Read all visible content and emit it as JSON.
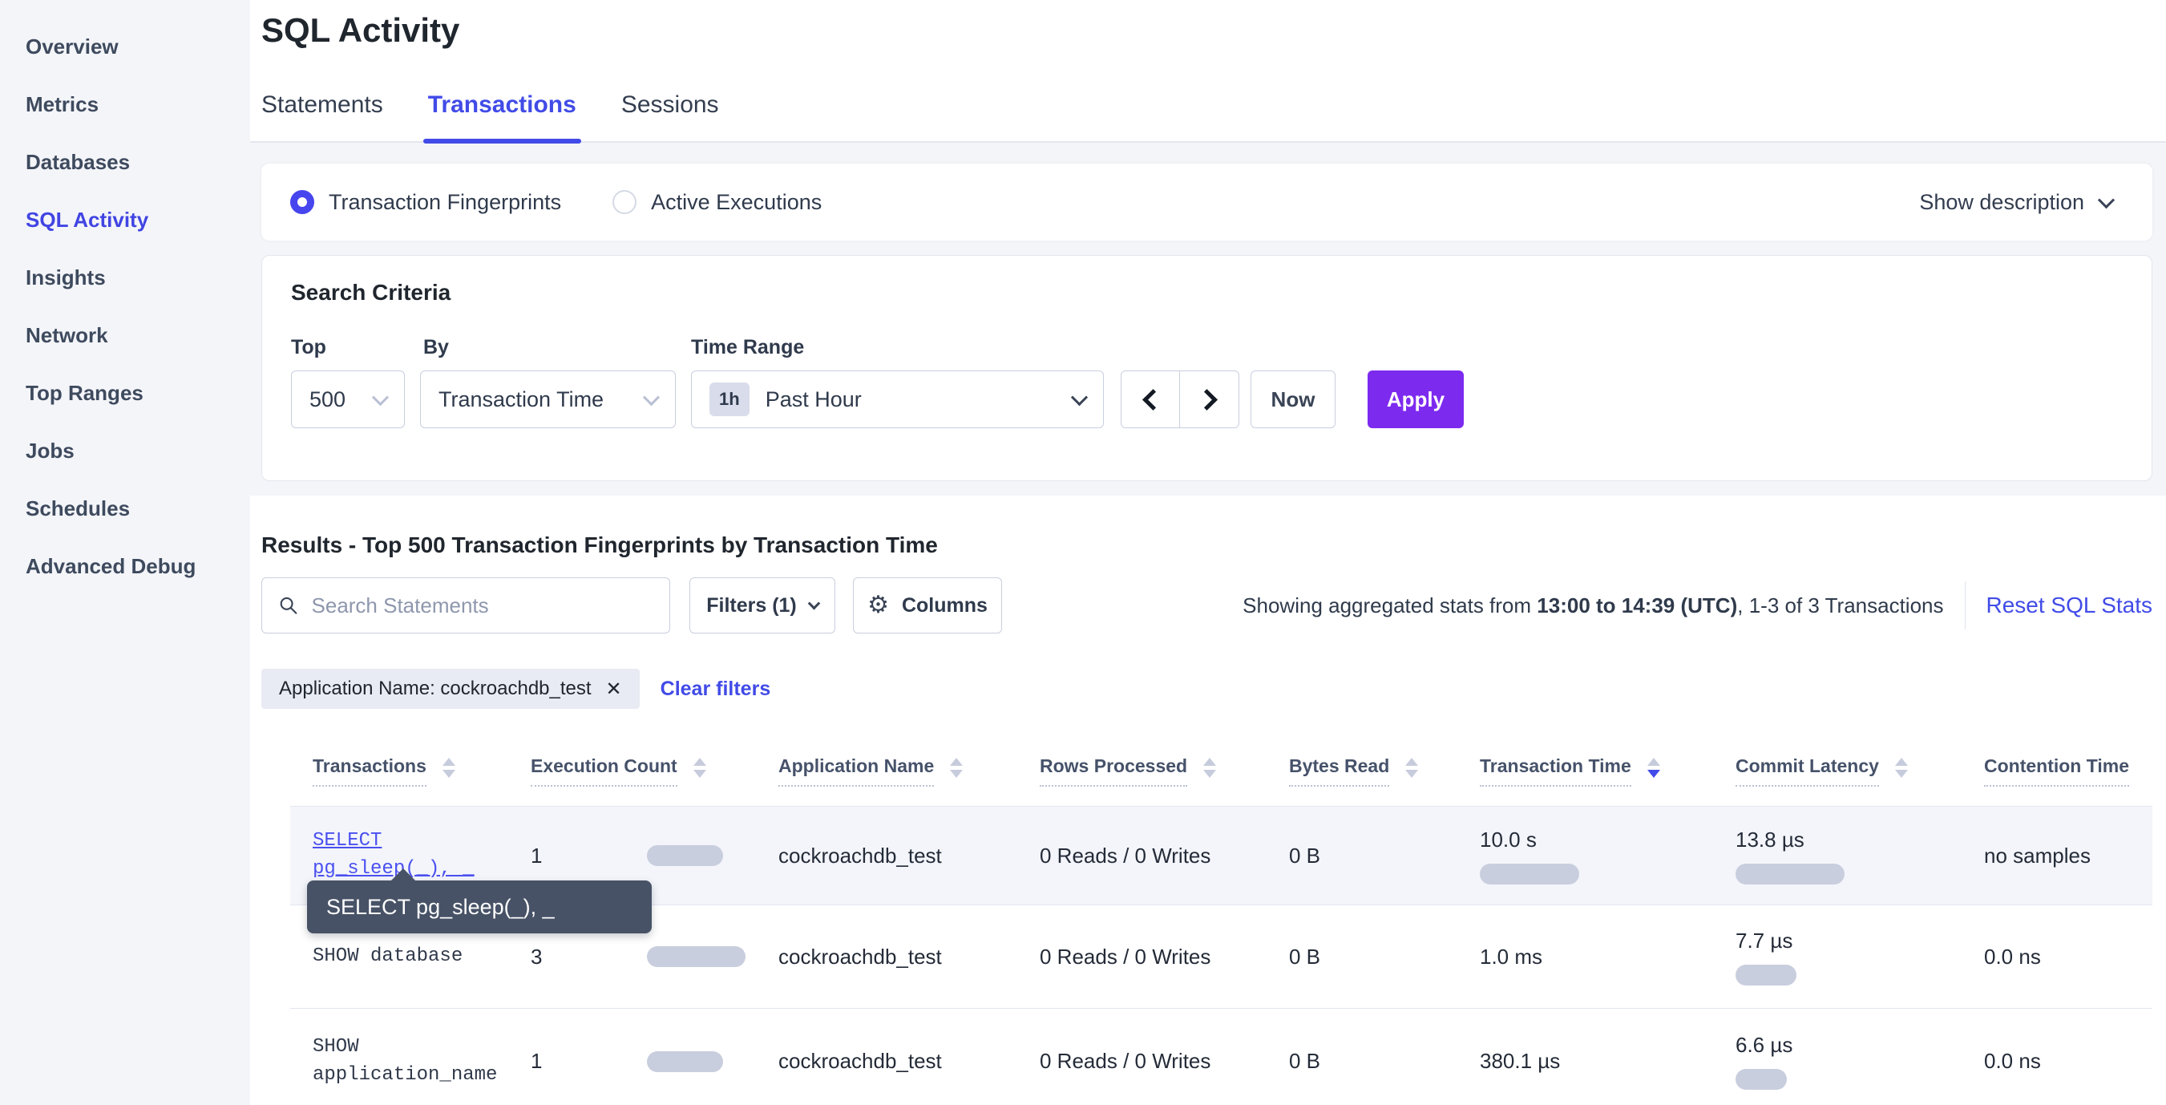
{
  "sidebar": {
    "items": [
      {
        "label": "Overview",
        "active": false
      },
      {
        "label": "Metrics",
        "active": false
      },
      {
        "label": "Databases",
        "active": false
      },
      {
        "label": "SQL Activity",
        "active": true
      },
      {
        "label": "Insights",
        "active": false
      },
      {
        "label": "Network",
        "active": false
      },
      {
        "label": "Top Ranges",
        "active": false
      },
      {
        "label": "Jobs",
        "active": false
      },
      {
        "label": "Schedules",
        "active": false
      },
      {
        "label": "Advanced Debug",
        "active": false
      }
    ]
  },
  "header": {
    "title": "SQL Activity",
    "tabs": [
      {
        "label": "Statements",
        "active": false
      },
      {
        "label": "Transactions",
        "active": true
      },
      {
        "label": "Sessions",
        "active": false
      }
    ]
  },
  "view_mode": {
    "options": [
      {
        "label": "Transaction Fingerprints",
        "selected": true
      },
      {
        "label": "Active Executions",
        "selected": false
      }
    ],
    "show_description_label": "Show description"
  },
  "search_criteria": {
    "title": "Search Criteria",
    "top": {
      "label": "Top",
      "value": "500"
    },
    "by": {
      "label": "By",
      "value": "Transaction Time"
    },
    "time_range": {
      "label": "Time Range",
      "badge": "1h",
      "value": "Past Hour"
    },
    "now_label": "Now",
    "apply_label": "Apply"
  },
  "results": {
    "heading": "Results - Top 500 Transaction Fingerprints by Transaction Time",
    "search_placeholder": "Search Statements",
    "filters_label": "Filters (1)",
    "columns_label": "Columns",
    "stats_prefix": "Showing aggregated stats from ",
    "stats_bold": "13:00 to 14:39 (UTC)",
    "stats_suffix": ", 1-3 of 3 Transactions",
    "reset_label": "Reset SQL Stats",
    "filter_chip": "Application Name: cockroachdb_test",
    "chip_close": "✕",
    "clear_filters": "Clear filters"
  },
  "tooltip": {
    "text": "SELECT pg_sleep(_), _"
  },
  "table": {
    "columns": [
      {
        "label": "Transactions",
        "sort": "none"
      },
      {
        "label": "Execution Count",
        "sort": "none"
      },
      {
        "label": "Application Name",
        "sort": "none"
      },
      {
        "label": "Rows Processed",
        "sort": "none"
      },
      {
        "label": "Bytes Read",
        "sort": "none"
      },
      {
        "label": "Transaction Time",
        "sort": "desc"
      },
      {
        "label": "Commit Latency",
        "sort": "none"
      },
      {
        "label": "Contention Time",
        "sort": "none"
      }
    ],
    "rows": [
      {
        "statement_lines": [
          "SELECT",
          "pg_sleep(_), _"
        ],
        "is_link": true,
        "exec_count": "1",
        "exec_bar": 95,
        "app_name": "cockroachdb_test",
        "rows_processed": "0 Reads / 0 Writes",
        "bytes_read": "0 B",
        "txn_time": "10.0 s",
        "txn_bar": 124,
        "commit_latency": "13.8 µs",
        "commit_bar": 136,
        "contention_time": "no samples"
      },
      {
        "statement_lines": [
          "SHOW database"
        ],
        "is_link": false,
        "exec_count": "3",
        "exec_bar": 123,
        "app_name": "cockroachdb_test",
        "rows_processed": "0 Reads / 0 Writes",
        "bytes_read": "0 B",
        "txn_time": "1.0 ms",
        "txn_bar": 0,
        "commit_latency": "7.7 µs",
        "commit_bar": 76,
        "contention_time": "0.0 ns"
      },
      {
        "statement_lines": [
          "SHOW",
          "application_name"
        ],
        "is_link": false,
        "exec_count": "1",
        "exec_bar": 95,
        "app_name": "cockroachdb_test",
        "rows_processed": "0 Reads / 0 Writes",
        "bytes_read": "0 B",
        "txn_time": "380.1 µs",
        "txn_bar": 0,
        "commit_latency": "6.6 µs",
        "commit_bar": 64,
        "contention_time": "0.0 ns"
      }
    ]
  },
  "colors": {
    "accent_blue": "#414be7",
    "link_blue": "#4b50ef",
    "apply_purple": "#7d2aef",
    "bar_fill": "#c9cede",
    "tooltip_bg": "#475266",
    "band_bg": "#f4f5f9",
    "row_highlight": "#f3f5fa"
  }
}
